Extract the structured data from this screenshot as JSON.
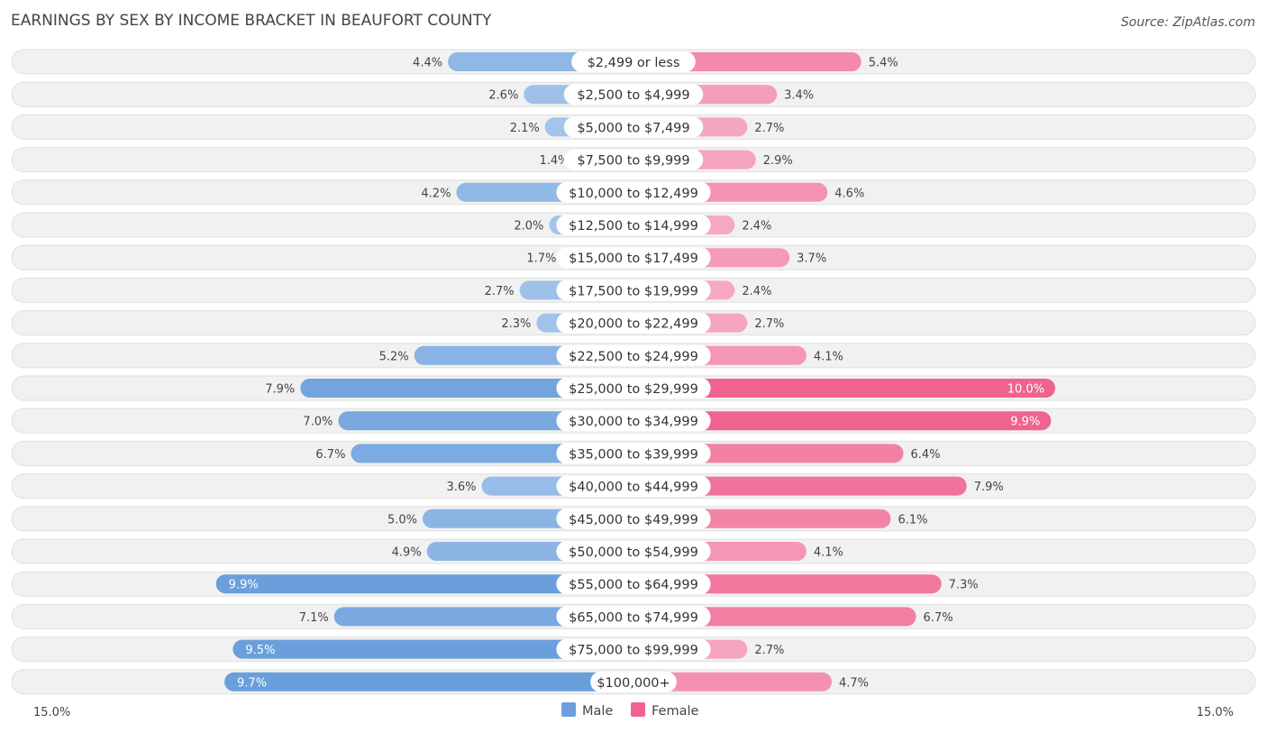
{
  "chart_data": {
    "type": "bar",
    "orientation": "horizontal-diverging",
    "title": "EARNINGS BY SEX BY INCOME BRACKET IN BEAUFORT COUNTY",
    "source": "Source: ZipAtlas.com",
    "categories": [
      "$2,499 or less",
      "$2,500 to $4,999",
      "$5,000 to $7,499",
      "$7,500 to $9,999",
      "$10,000 to $12,499",
      "$12,500 to $14,999",
      "$15,000 to $17,499",
      "$17,500 to $19,999",
      "$20,000 to $22,499",
      "$22,500 to $24,999",
      "$25,000 to $29,999",
      "$30,000 to $34,999",
      "$35,000 to $39,999",
      "$40,000 to $44,999",
      "$45,000 to $49,999",
      "$50,000 to $54,999",
      "$55,000 to $64,999",
      "$65,000 to $74,999",
      "$75,000 to $99,999",
      "$100,000+"
    ],
    "series": [
      {
        "name": "Male",
        "values": [
          4.4,
          2.6,
          2.1,
          1.4,
          4.2,
          2.0,
          1.7,
          2.7,
          2.3,
          5.2,
          7.9,
          7.0,
          6.7,
          3.6,
          5.0,
          4.9,
          9.9,
          7.1,
          9.5,
          9.7
        ],
        "labels": [
          "4.4%",
          "2.6%",
          "2.1%",
          "1.4%",
          "4.2%",
          "2.0%",
          "1.7%",
          "2.7%",
          "2.3%",
          "5.2%",
          "7.9%",
          "7.0%",
          "6.7%",
          "3.6%",
          "5.0%",
          "4.9%",
          "9.9%",
          "7.1%",
          "9.5%",
          "9.7%"
        ]
      },
      {
        "name": "Female",
        "values": [
          5.4,
          3.4,
          2.7,
          2.9,
          4.6,
          2.4,
          3.7,
          2.4,
          2.7,
          4.1,
          10.0,
          9.9,
          6.4,
          7.9,
          6.1,
          4.1,
          7.3,
          6.7,
          2.7,
          4.7
        ],
        "labels": [
          "5.4%",
          "3.4%",
          "2.7%",
          "2.9%",
          "4.6%",
          "2.4%",
          "3.7%",
          "2.4%",
          "2.7%",
          "4.1%",
          "10.0%",
          "9.9%",
          "6.4%",
          "7.9%",
          "6.1%",
          "4.1%",
          "7.3%",
          "6.7%",
          "2.7%",
          "4.7%"
        ]
      }
    ],
    "axis_max": 15.0,
    "axis_left_label": "15.0%",
    "axis_right_label": "15.0%",
    "legend": [
      "Male",
      "Female"
    ],
    "legend_position": "bottom-center",
    "colors": {
      "male_light": "#a9c8ec",
      "male_strong": "#6a9fdc",
      "female_light": "#f6a8c0",
      "female_strong": "#f0638f",
      "row_bg": "#f1f1f1",
      "row_border": "#e0e0e0"
    }
  }
}
